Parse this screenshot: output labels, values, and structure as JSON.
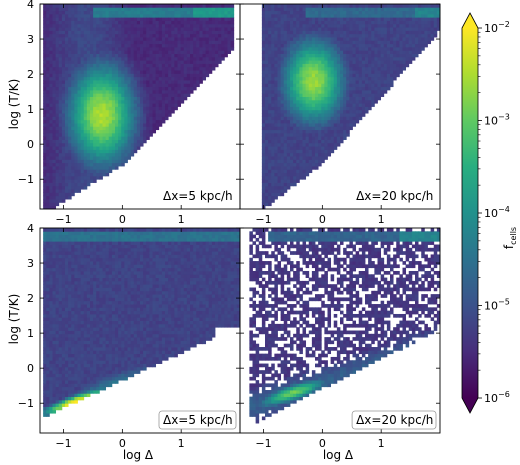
{
  "chart_data": {
    "type": "heatmap",
    "colormap": "viridis",
    "shared_axes": {
      "xlabel": "log Δ",
      "ylabel": "log (T/K)",
      "xlim": [
        -1.4,
        2.0
      ],
      "ylim": [
        -1.85,
        4.0
      ],
      "xticks": [
        "-1",
        "0",
        "1"
      ],
      "yticks": [
        "-1",
        "0",
        "1",
        "2",
        "3",
        "4"
      ]
    },
    "colorbar": {
      "label": "f",
      "label_sub": "cells",
      "scale": "log",
      "range": [
        1e-06,
        0.01
      ],
      "ticks": [
        {
          "base": "10",
          "exp": "-2"
        },
        {
          "base": "10",
          "exp": "-3"
        },
        {
          "base": "10",
          "exp": "-4"
        },
        {
          "base": "10",
          "exp": "-5"
        },
        {
          "base": "10",
          "exp": "-6"
        }
      ],
      "extend": "both"
    },
    "panels": [
      {
        "id": "top-left",
        "annotation": "Δx=5 kpc/h",
        "peak": [
          -0.4,
          0.9
        ],
        "note": "broad distribution, hot tail at log T ~ 3.8"
      },
      {
        "id": "top-right",
        "annotation": "Δx=20 kpc/h",
        "peak": [
          -0.2,
          1.7
        ],
        "note": "peak shifted to higher temperature"
      },
      {
        "id": "bottom-left",
        "annotation": "Δx=5 kpc/h",
        "peak": [
          -0.8,
          -0.85
        ],
        "note": "narrow cold power-law ridge"
      },
      {
        "id": "bottom-right",
        "annotation": "Δx=20 kpc/h",
        "peak": [
          -0.5,
          -0.55
        ],
        "note": "sparser, noisier distribution"
      }
    ]
  }
}
